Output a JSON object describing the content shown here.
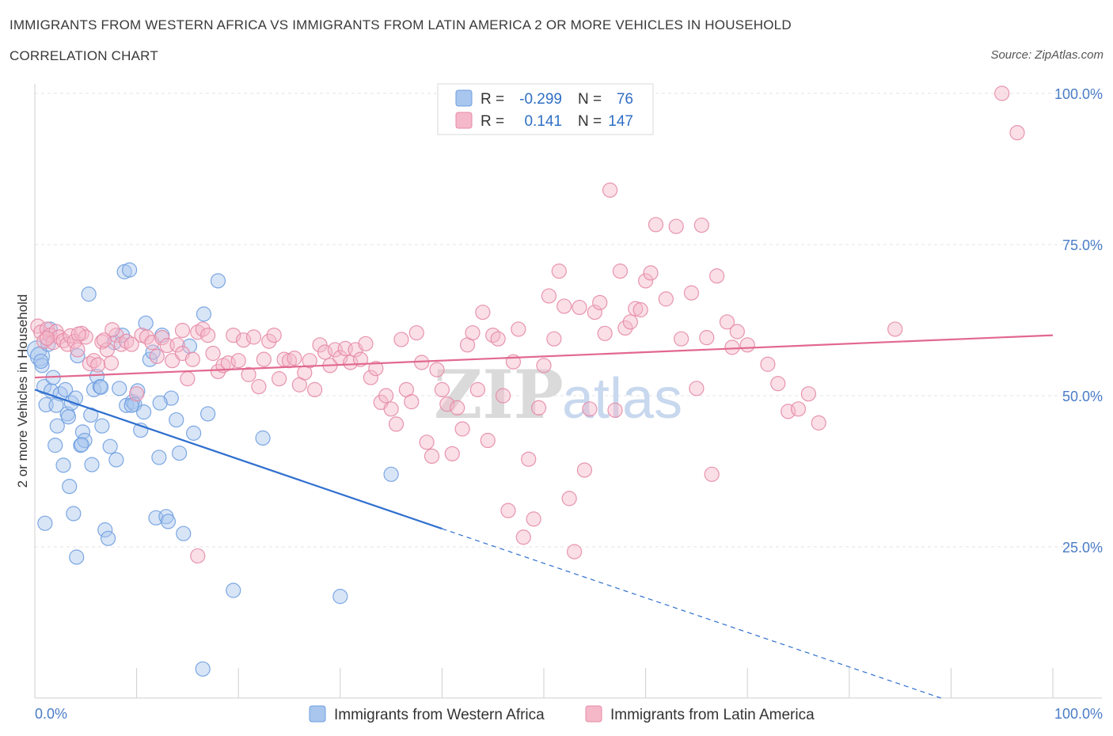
{
  "header": {
    "title": "IMMIGRANTS FROM WESTERN AFRICA VS IMMIGRANTS FROM LATIN AMERICA 2 OR MORE VEHICLES IN HOUSEHOLD",
    "subtitle": "CORRELATION CHART",
    "source": "Source: ZipAtlas.com"
  },
  "watermark": {
    "zip": "ZIP",
    "atlas": "atlas"
  },
  "legend": {
    "r_label": "R =",
    "n_label": "N =",
    "rows": [
      {
        "r": "-0.299",
        "n": "76",
        "color": "#a8c6ee"
      },
      {
        "r": "0.141",
        "n": "147",
        "color": "#f4b8c9"
      }
    ]
  },
  "bottom_legend": [
    {
      "label": "Immigrants from Western Africa",
      "color": "#a8c6ee"
    },
    {
      "label": "Immigrants from Latin America",
      "color": "#f4b8c9"
    }
  ],
  "chart_data": {
    "type": "scatter",
    "title": "IMMIGRANTS FROM WESTERN AFRICA VS IMMIGRANTS FROM LATIN AMERICA 2 OR MORE VEHICLES IN HOUSEHOLD",
    "ylabel": "2 or more Vehicles in Household",
    "xlabel": "",
    "xlim": [
      0,
      100
    ],
    "ylim": [
      0,
      100
    ],
    "x_tick_labels": [
      "0.0%",
      "100.0%"
    ],
    "y_tick_labels": [
      "25.0%",
      "50.0%",
      "75.0%",
      "100.0%"
    ],
    "y_ticks": [
      25,
      50,
      75,
      100
    ],
    "grid": true,
    "legend_position": "top-center",
    "series": [
      {
        "name": "Immigrants from Western Africa",
        "color": "#6f9fe0",
        "fill": "#a8c6ee",
        "r": -0.299,
        "n": 76,
        "trend": {
          "x": [
            0,
            40
          ],
          "y": [
            51,
            28
          ],
          "dashed_to": [
            89,
            0
          ]
        },
        "points": [
          [
            0.2,
            57.5
          ],
          [
            0.5,
            56.5
          ],
          [
            0.7,
            55
          ],
          [
            0.9,
            51.5
          ],
          [
            1.1,
            48.5
          ],
          [
            1.3,
            58.5
          ],
          [
            1.6,
            50.8
          ],
          [
            1.8,
            53
          ],
          [
            2,
            41.8
          ],
          [
            2.2,
            45
          ],
          [
            2.5,
            50.3
          ],
          [
            2.8,
            38.5
          ],
          [
            3,
            51
          ],
          [
            3.2,
            47
          ],
          [
            3.4,
            35
          ],
          [
            3.6,
            48.8
          ],
          [
            3.8,
            30.5
          ],
          [
            4,
            49.6
          ],
          [
            4.2,
            56.6
          ],
          [
            4.5,
            41.8
          ],
          [
            4.7,
            44
          ],
          [
            4.9,
            42.6
          ],
          [
            5.3,
            66.8
          ],
          [
            5.5,
            46.8
          ],
          [
            5.8,
            51
          ],
          [
            6.1,
            53.2
          ],
          [
            6.4,
            51.5
          ],
          [
            6.6,
            45
          ],
          [
            6.9,
            27.8
          ],
          [
            7.2,
            26.4
          ],
          [
            7.4,
            41.6
          ],
          [
            7.8,
            58.8
          ],
          [
            8,
            39.4
          ],
          [
            8.3,
            51.2
          ],
          [
            8.6,
            60
          ],
          [
            8.8,
            70.5
          ],
          [
            9,
            48.4
          ],
          [
            9.3,
            70.8
          ],
          [
            9.6,
            49
          ],
          [
            9.8,
            48.6
          ],
          [
            10.1,
            50.8
          ],
          [
            10.4,
            44.3
          ],
          [
            10.7,
            47.3
          ],
          [
            10.9,
            62
          ],
          [
            11.3,
            56
          ],
          [
            11.6,
            57.2
          ],
          [
            11.9,
            29.8
          ],
          [
            12.2,
            39.8
          ],
          [
            12.5,
            60
          ],
          [
            12.9,
            30
          ],
          [
            13.1,
            29.2
          ],
          [
            13.4,
            49.6
          ],
          [
            13.9,
            46
          ],
          [
            14.2,
            40.5
          ],
          [
            14.6,
            27.2
          ],
          [
            15.2,
            58.2
          ],
          [
            15.6,
            43.8
          ],
          [
            16.5,
            4.8
          ],
          [
            16.6,
            63.5
          ],
          [
            17,
            47
          ],
          [
            1,
            28.9
          ],
          [
            4.1,
            23.3
          ],
          [
            18,
            69
          ],
          [
            19.5,
            17.8
          ],
          [
            22.4,
            43
          ],
          [
            30,
            16.8
          ],
          [
            35,
            37
          ],
          [
            9.5,
            48.4
          ],
          [
            6.5,
            51.4
          ],
          [
            2.1,
            48.4
          ],
          [
            3.3,
            46.5
          ],
          [
            4.6,
            41.9
          ],
          [
            5.6,
            38.6
          ],
          [
            1.5,
            61
          ],
          [
            0.6,
            55.7
          ],
          [
            12.3,
            48.8
          ]
        ]
      },
      {
        "name": "Immigrants from Latin America",
        "color": "#e68aa6",
        "fill": "#f4b8c9",
        "r": 0.141,
        "n": 147,
        "trend": {
          "x": [
            0,
            100
          ],
          "y": [
            53,
            60
          ]
        },
        "points": [
          [
            0.3,
            61.5
          ],
          [
            0.6,
            60.5
          ],
          [
            0.9,
            59
          ],
          [
            1.2,
            61
          ],
          [
            1.5,
            60
          ],
          [
            1.8,
            58.8
          ],
          [
            2.1,
            60.6
          ],
          [
            2.4,
            59.7
          ],
          [
            2.8,
            59.1
          ],
          [
            3.2,
            58.5
          ],
          [
            3.5,
            59.9
          ],
          [
            3.9,
            59
          ],
          [
            4.2,
            57.6
          ],
          [
            4.6,
            60.3
          ],
          [
            5,
            59.7
          ],
          [
            5.4,
            55.3
          ],
          [
            5.8,
            55.8
          ],
          [
            6.2,
            55.1
          ],
          [
            6.6,
            58.9
          ],
          [
            7.1,
            57.6
          ],
          [
            7.5,
            55.4
          ],
          [
            8,
            60
          ],
          [
            8.5,
            58.5
          ],
          [
            9,
            59
          ],
          [
            9.5,
            58.5
          ],
          [
            10,
            50.3
          ],
          [
            10.5,
            60
          ],
          [
            11,
            59.7
          ],
          [
            11.5,
            58.8
          ],
          [
            12,
            56.5
          ],
          [
            12.5,
            59.6
          ],
          [
            13,
            58.3
          ],
          [
            13.5,
            55.8
          ],
          [
            14,
            58.4
          ],
          [
            14.5,
            57
          ],
          [
            15,
            52.8
          ],
          [
            15.5,
            56
          ],
          [
            16,
            60.5
          ],
          [
            16.5,
            61
          ],
          [
            17,
            60
          ],
          [
            17.5,
            57
          ],
          [
            18,
            54
          ],
          [
            18.5,
            55
          ],
          [
            19,
            55.4
          ],
          [
            19.5,
            60
          ],
          [
            20,
            55.8
          ],
          [
            20.5,
            59.2
          ],
          [
            21,
            53.5
          ],
          [
            21.5,
            59.7
          ],
          [
            22,
            51.5
          ],
          [
            22.5,
            56
          ],
          [
            23,
            59
          ],
          [
            23.5,
            60
          ],
          [
            24,
            52.8
          ],
          [
            24.5,
            56
          ],
          [
            25,
            55.8
          ],
          [
            25.5,
            56.2
          ],
          [
            26,
            51.8
          ],
          [
            26.5,
            53.8
          ],
          [
            27,
            55.8
          ],
          [
            27.5,
            51
          ],
          [
            28,
            58.4
          ],
          [
            28.5,
            57.2
          ],
          [
            29,
            55
          ],
          [
            29.5,
            57.6
          ],
          [
            30,
            56.3
          ],
          [
            30.5,
            57.8
          ],
          [
            31,
            55.5
          ],
          [
            31.5,
            57.6
          ],
          [
            32,
            56
          ],
          [
            32.5,
            58.6
          ],
          [
            33,
            53
          ],
          [
            33.5,
            54.5
          ],
          [
            34,
            48.9
          ],
          [
            34.5,
            50
          ],
          [
            35,
            47.8
          ],
          [
            35.5,
            45.3
          ],
          [
            36,
            59.3
          ],
          [
            36.5,
            51
          ],
          [
            37,
            49
          ],
          [
            37.5,
            60.4
          ],
          [
            38,
            55.5
          ],
          [
            38.5,
            42.3
          ],
          [
            39,
            40
          ],
          [
            39.5,
            54.3
          ],
          [
            40,
            51
          ],
          [
            40.5,
            48.6
          ],
          [
            41,
            40.4
          ],
          [
            41.5,
            48
          ],
          [
            42,
            44.5
          ],
          [
            42.5,
            58.4
          ],
          [
            43,
            60.4
          ],
          [
            43.5,
            51
          ],
          [
            44,
            63.8
          ],
          [
            44.5,
            42.6
          ],
          [
            45,
            60
          ],
          [
            45.5,
            59.4
          ],
          [
            46,
            50
          ],
          [
            46.5,
            31
          ],
          [
            47,
            55.6
          ],
          [
            47.5,
            61
          ],
          [
            48,
            26.6
          ],
          [
            48.5,
            39.5
          ],
          [
            49,
            29.6
          ],
          [
            49.5,
            48
          ],
          [
            50,
            55
          ],
          [
            50.5,
            66.5
          ],
          [
            51,
            59.4
          ],
          [
            51.5,
            70.6
          ],
          [
            52,
            64.8
          ],
          [
            52.5,
            33
          ],
          [
            53,
            24.2
          ],
          [
            53.5,
            64.6
          ],
          [
            54,
            37.7
          ],
          [
            54.5,
            47.8
          ],
          [
            55,
            63.8
          ],
          [
            55.5,
            65.4
          ],
          [
            56,
            60.3
          ],
          [
            56.5,
            84
          ],
          [
            57,
            47.6
          ],
          [
            57.5,
            70.6
          ],
          [
            58,
            61.2
          ],
          [
            58.5,
            62.2
          ],
          [
            59,
            64.4
          ],
          [
            59.5,
            64.2
          ],
          [
            60,
            69
          ],
          [
            60.5,
            70.3
          ],
          [
            61,
            78.3
          ],
          [
            62,
            66
          ],
          [
            63,
            78
          ],
          [
            63.5,
            59.4
          ],
          [
            64.5,
            67
          ],
          [
            65,
            51.2
          ],
          [
            65.5,
            78.2
          ],
          [
            66,
            59.6
          ],
          [
            66.5,
            37
          ],
          [
            67,
            69.8
          ],
          [
            68,
            62.2
          ],
          [
            68.5,
            58
          ],
          [
            69,
            60.6
          ],
          [
            70,
            58.4
          ],
          [
            72,
            55.2
          ],
          [
            73,
            52
          ],
          [
            74,
            47.4
          ],
          [
            75,
            47.8
          ],
          [
            76,
            50.3
          ],
          [
            77,
            45.5
          ],
          [
            84.5,
            61
          ],
          [
            95,
            100
          ],
          [
            96.5,
            93.5
          ],
          [
            1.2,
            59.5
          ],
          [
            6.8,
            59.2
          ],
          [
            4.3,
            60.2
          ],
          [
            7.6,
            60.9
          ],
          [
            16,
            23.5
          ],
          [
            14.5,
            60.8
          ]
        ]
      }
    ]
  }
}
